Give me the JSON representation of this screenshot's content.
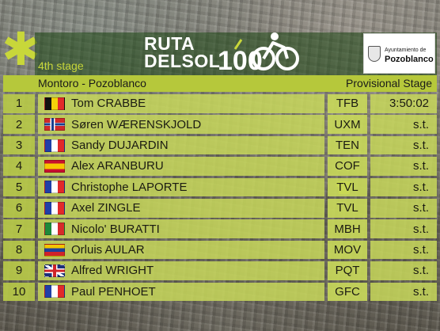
{
  "header": {
    "logo_word1": "RUTA",
    "logo_word2": "DELSOL",
    "logo_number": "100",
    "sponsor_line1": "Ayuntamiento de",
    "sponsor_line2": "Pozoblanco",
    "stage": "4th stage",
    "route": "Montoro - Pozoblanco",
    "status": "Provisional Stage"
  },
  "colors": {
    "accent_green": "#b6c83b",
    "row_green": "#c8d85a",
    "header_band": "#1c4612"
  },
  "results": [
    {
      "pos": "1",
      "flag": "belgium",
      "rider": "Tom CRABBE",
      "team": "TFB",
      "time": "3:50:02",
      "jersey": ""
    },
    {
      "pos": "2",
      "flag": "norway",
      "rider": "Søren WÆRENSKJOLD",
      "team": "UXM",
      "time": "s.t.",
      "jersey": ""
    },
    {
      "pos": "3",
      "flag": "france",
      "rider": "Sandy DUJARDIN",
      "team": "TEN",
      "time": "s.t.",
      "jersey": ""
    },
    {
      "pos": "4",
      "flag": "spain",
      "rider": "Alex ARANBURU",
      "team": "COF",
      "time": "s.t.",
      "jersey": ""
    },
    {
      "pos": "5",
      "flag": "france",
      "rider": "Christophe LAPORTE",
      "team": "TVL",
      "time": "s.t.",
      "jersey": "yellow-jersey-icon"
    },
    {
      "pos": "6",
      "flag": "france",
      "rider": "Axel ZINGLE",
      "team": "TVL",
      "time": "s.t.",
      "jersey": ""
    },
    {
      "pos": "7",
      "flag": "italy",
      "rider": "Nicolo' BURATTI",
      "team": "MBH",
      "time": "s.t.",
      "jersey": ""
    },
    {
      "pos": "8",
      "flag": "venezuela",
      "rider": "Orluis AULAR",
      "team": "MOV",
      "time": "s.t.",
      "jersey": ""
    },
    {
      "pos": "9",
      "flag": "united-kingdom",
      "rider": "Alfred WRIGHT",
      "team": "PQT",
      "time": "s.t.",
      "jersey": ""
    },
    {
      "pos": "10",
      "flag": "france",
      "rider": "Paul PENHOET",
      "team": "GFC",
      "time": "s.t.",
      "jersey": ""
    }
  ]
}
